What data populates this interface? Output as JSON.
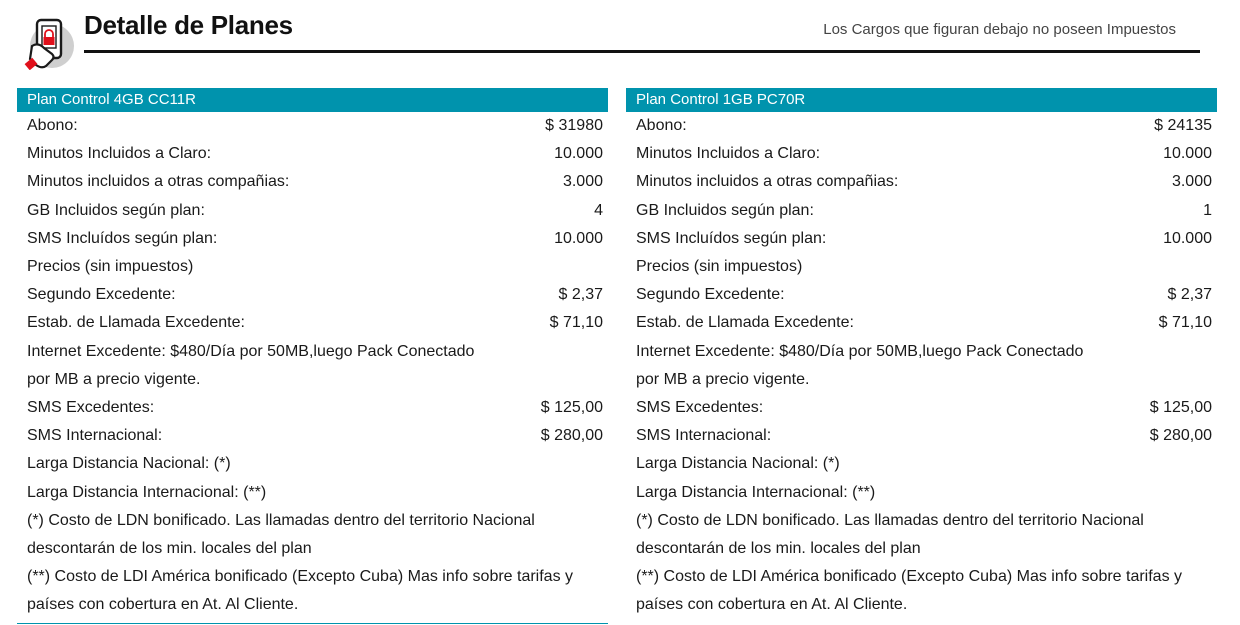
{
  "header": {
    "title": "Detalle de Planes",
    "note": "Los Cargos que figuran debajo no poseen Impuestos",
    "icon": "phone-hand-icon",
    "accent_color": "#0093ad",
    "icon_color": "#e0101b"
  },
  "plans": [
    {
      "name": "Plan Control 4GB CC11R",
      "rows": [
        {
          "label": "Abono:",
          "value": "$ 31980"
        },
        {
          "label": "Minutos Incluidos a Claro:",
          "value": "10.000"
        },
        {
          "label": "Minutos incluidos a otras compañias:",
          "value": "3.000"
        },
        {
          "label": "GB Incluidos según plan:",
          "value": "4"
        },
        {
          "label": "SMS Incluídos según plan:",
          "value": "10.000"
        },
        {
          "label": "Precios (sin impuestos)",
          "value": ""
        },
        {
          "label": "Segundo Excedente:",
          "value": "$ 2,37"
        },
        {
          "label": "Estab. de Llamada Excedente:",
          "value": "$ 71,10"
        }
      ],
      "internet_lines": [
        "Internet Excedente: $480/Día por 50MB,luego Pack Conectado",
        "por MB a precio vigente."
      ],
      "rows2": [
        {
          "label": "SMS Excedentes:",
          "value": "$ 125,00"
        },
        {
          "label": "SMS Internacional:",
          "value": "$ 280,00"
        },
        {
          "label": "Larga Distancia Nacional: (*)",
          "value": ""
        },
        {
          "label": "Larga Distancia Internacional: (**)",
          "value": ""
        }
      ],
      "ldn_lines": [
        "(*) Costo de LDN bonificado. Las llamadas dentro del territorio Nacional",
        "descontarán de los min. locales del plan"
      ],
      "ldi_lines": [
        "(**) Costo de LDI América bonificado (Excepto Cuba) Mas info sobre tarifas y",
        "países con cobertura en At. Al Cliente."
      ]
    },
    {
      "name": "Plan Control 1GB PC70R",
      "rows": [
        {
          "label": "Abono:",
          "value": "$ 24135"
        },
        {
          "label": "Minutos Incluidos a Claro:",
          "value": "10.000"
        },
        {
          "label": "Minutos incluidos a otras compañias:",
          "value": "3.000"
        },
        {
          "label": "GB Incluidos según plan:",
          "value": "1"
        },
        {
          "label": "SMS Incluídos según plan:",
          "value": "10.000"
        },
        {
          "label": "Precios (sin impuestos)",
          "value": ""
        },
        {
          "label": "Segundo Excedente:",
          "value": "$ 2,37"
        },
        {
          "label": "Estab. de Llamada Excedente:",
          "value": "$ 71,10"
        }
      ],
      "internet_lines": [
        "Internet Excedente: $480/Día por 50MB,luego Pack Conectado",
        "por MB a precio vigente."
      ],
      "rows2": [
        {
          "label": "SMS Excedentes:",
          "value": "$ 125,00"
        },
        {
          "label": "SMS Internacional:",
          "value": "$ 280,00"
        },
        {
          "label": "Larga Distancia Nacional: (*)",
          "value": ""
        },
        {
          "label": "Larga Distancia Internacional: (**)",
          "value": ""
        }
      ],
      "ldn_lines": [
        "(*) Costo de LDN bonificado. Las llamadas dentro del territorio Nacional",
        "descontarán de los min. locales del plan"
      ],
      "ldi_lines": [
        "(**) Costo de LDI América bonificado (Excepto Cuba) Mas info sobre tarifas y",
        "países con cobertura en At. Al Cliente."
      ]
    }
  ]
}
